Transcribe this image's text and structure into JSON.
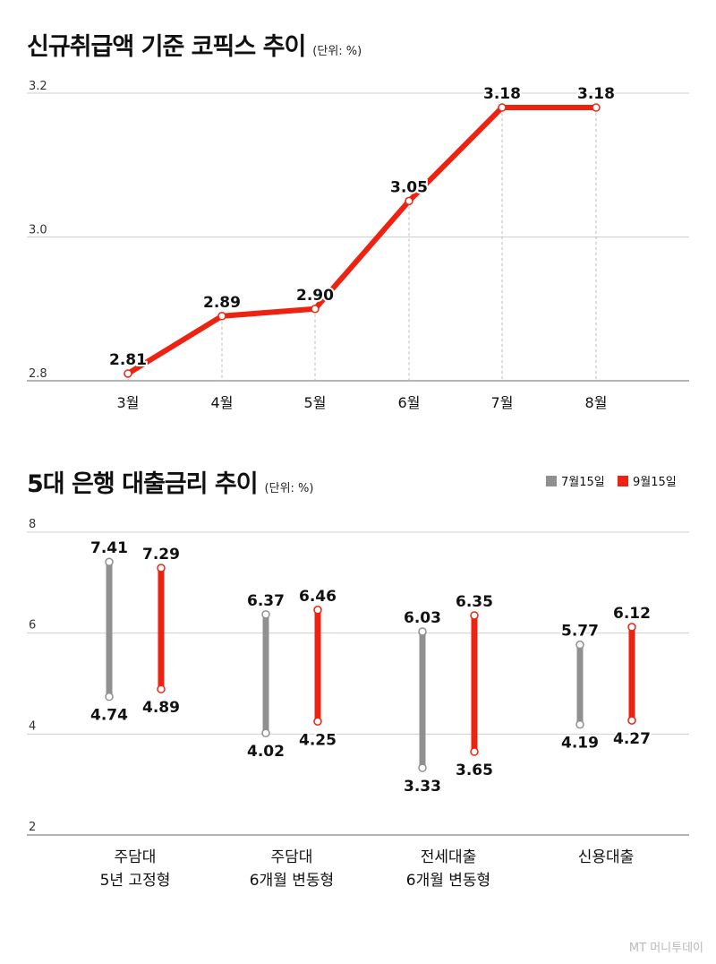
{
  "chart_data": [
    {
      "type": "line",
      "title": "신규취급액 기준 코픽스 추이",
      "unit": "(단위: %)",
      "categories": [
        "3월",
        "4월",
        "5월",
        "6월",
        "7월",
        "8월"
      ],
      "values": [
        2.81,
        2.89,
        2.9,
        3.05,
        3.18,
        3.18
      ],
      "value_labels": [
        "2.81",
        "2.89",
        "2.90",
        "3.05",
        "3.18",
        "3.18"
      ],
      "yticks": [
        "2.8",
        "3.0",
        "3.2"
      ],
      "ylim": [
        2.8,
        3.2
      ],
      "grid": true,
      "line_color": "#ee2211"
    },
    {
      "type": "range-bar",
      "title": "5대 은행 대출금리 추이",
      "unit": "(단위: %)",
      "categories": [
        [
          "주담대",
          "5년 고정형"
        ],
        [
          "주담대",
          "6개월 변동형"
        ],
        [
          "전세대출",
          "6개월 변동형"
        ],
        [
          "신용대출"
        ]
      ],
      "yticks": [
        "2",
        "4",
        "6",
        "8"
      ],
      "ylim": [
        2,
        8
      ],
      "legend_position": "top-right",
      "series": [
        {
          "name": "7월15일",
          "color": "#909090",
          "low": [
            4.74,
            4.02,
            3.33,
            4.19
          ],
          "high": [
            7.41,
            6.37,
            6.03,
            5.77
          ],
          "low_labels": [
            "4.74",
            "4.02",
            "3.33",
            "4.19"
          ],
          "high_labels": [
            "7.41",
            "6.37",
            "6.03",
            "5.77"
          ]
        },
        {
          "name": "9월15일",
          "color": "#ee2211",
          "low": [
            4.89,
            4.25,
            3.65,
            4.27
          ],
          "high": [
            7.29,
            6.46,
            6.35,
            6.12
          ],
          "low_labels": [
            "4.89",
            "4.25",
            "3.65",
            "4.27"
          ],
          "high_labels": [
            "7.29",
            "6.46",
            "6.35",
            "6.12"
          ]
        }
      ]
    }
  ],
  "watermark": "MT 머니투데이"
}
